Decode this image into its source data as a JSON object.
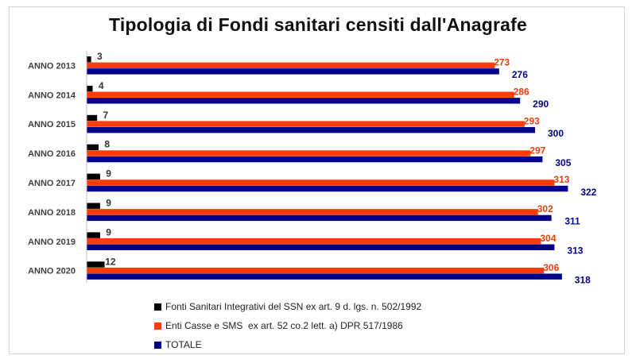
{
  "chart_data": {
    "type": "bar",
    "orientation": "horizontal",
    "title": "Tipologia di Fondi sanitari censiti dall'Anagrafe",
    "categories": [
      "ANNO 2013",
      "ANNO 2014",
      "ANNO 2015",
      "ANNO 2016",
      "ANNO 2017",
      "ANNO 2018",
      "ANNO 2019",
      "ANNO 2020"
    ],
    "series": [
      {
        "name": "Fonti Sanitari Integrativi del SSN ex art. 9 d. lgs. n. 502/1992",
        "color": "#000000",
        "label_color": "#333333",
        "values": [
          3,
          4,
          7,
          8,
          9,
          9,
          9,
          12
        ]
      },
      {
        "name": "Enti Casse e SMS  ex art. 52 co.2 lett. a) DPR 517/1986",
        "color": "#ff3d0a",
        "label_color": "#e8400c",
        "values": [
          273,
          286,
          293,
          297,
          313,
          302,
          304,
          306
        ]
      },
      {
        "name": "TOTALE",
        "color": "#00008b",
        "label_color": "#00008b",
        "values": [
          276,
          290,
          300,
          305,
          322,
          311,
          313,
          318
        ]
      }
    ],
    "xlim": [
      0,
      350
    ],
    "grid": false,
    "legend_position": "bottom"
  }
}
